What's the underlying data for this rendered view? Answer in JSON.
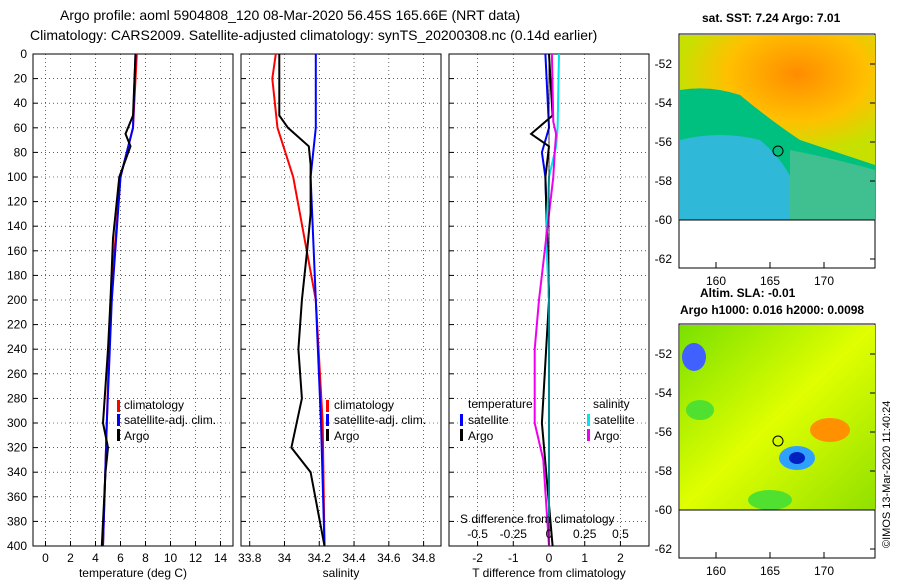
{
  "title_line1": "Argo profile: aoml 5904808_120 08-Mar-2020 56.45S 165.66E (NRT data)",
  "title_line2": "Climatology: CARS2009. Satellite-adjusted climatology: synTS_20200308.nc (0.14d earlier)",
  "colors": {
    "climatology": "#ff0000",
    "satellite": "#0000ff",
    "argo": "#000000",
    "sal_satellite": "#00e5ee",
    "sal_argo": "#ee00ee"
  },
  "chart_data": [
    {
      "type": "line",
      "id": "temperature",
      "xlabel": "temperature (deg C)",
      "ylabel": "",
      "xlim": [
        -1,
        15
      ],
      "ylim": [
        400,
        0
      ],
      "xticks": [
        "0",
        "2",
        "4",
        "6",
        "8",
        "10",
        "12",
        "14"
      ],
      "yticks": [
        "0",
        "20",
        "40",
        "60",
        "80",
        "100",
        "120",
        "140",
        "160",
        "180",
        "200",
        "220",
        "240",
        "260",
        "280",
        "300",
        "320",
        "340",
        "360",
        "380",
        "400"
      ],
      "legend": [
        "climatology",
        "satellite-adj. clim.",
        "Argo"
      ],
      "series": [
        {
          "name": "climatology",
          "depth": [
            0,
            60,
            100,
            200,
            300,
            400
          ],
          "values": [
            7.3,
            7.0,
            6.0,
            5.2,
            4.9,
            4.6
          ]
        },
        {
          "name": "satellite-adj. clim.",
          "depth": [
            0,
            60,
            100,
            200,
            300,
            400
          ],
          "values": [
            7.2,
            7.0,
            6.0,
            5.3,
            4.9,
            4.6
          ]
        },
        {
          "name": "Argo",
          "depth": [
            0,
            50,
            65,
            75,
            100,
            150,
            200,
            240,
            300,
            320,
            340,
            400
          ],
          "values": [
            7.2,
            7.0,
            6.4,
            6.8,
            5.9,
            5.4,
            5.2,
            5.0,
            4.6,
            5.0,
            4.8,
            4.5
          ]
        }
      ]
    },
    {
      "type": "line",
      "id": "salinity",
      "xlabel": "salinity",
      "xlim": [
        33.75,
        34.9
      ],
      "ylim": [
        400,
        0
      ],
      "xticks": [
        "33.8",
        "34",
        "34.2",
        "34.4",
        "34.6",
        "34.8"
      ],
      "legend": [
        "climatology",
        "satellite-adj. clim.",
        "Argo"
      ],
      "series": [
        {
          "name": "climatology",
          "depth": [
            0,
            20,
            60,
            100,
            200,
            300,
            400
          ],
          "values": [
            33.95,
            33.93,
            33.96,
            34.05,
            34.18,
            34.22,
            34.23
          ]
        },
        {
          "name": "satellite-adj. clim.",
          "depth": [
            0,
            60,
            100,
            200,
            300,
            400
          ],
          "values": [
            34.18,
            34.18,
            34.15,
            34.18,
            34.21,
            34.23
          ]
        },
        {
          "name": "Argo",
          "depth": [
            0,
            50,
            60,
            75,
            90,
            130,
            160,
            200,
            240,
            280,
            320,
            340,
            400
          ],
          "values": [
            33.97,
            33.97,
            34.02,
            34.14,
            34.15,
            34.15,
            34.13,
            34.1,
            34.08,
            34.1,
            34.04,
            34.15,
            34.23
          ]
        }
      ]
    },
    {
      "type": "line",
      "id": "differences",
      "xlabel": "T difference from climatology",
      "xlabel_top": "S difference from climatology",
      "xlim": [
        -2.8,
        2.8
      ],
      "ylim": [
        400,
        0
      ],
      "xticks": [
        "-2",
        "-1",
        "0",
        "1",
        "2"
      ],
      "xticks_top": [
        "-0.5",
        "-0.25",
        "0",
        "0.25",
        "0.5"
      ],
      "legend_temperature": {
        "title": "temperature",
        "items": [
          "satellite",
          "Argo"
        ]
      },
      "legend_salinity": {
        "title": "salinity",
        "items": [
          "satellite",
          "Argo"
        ]
      },
      "series": [
        {
          "name": "temperature satellite",
          "depth": [
            0,
            60,
            80,
            100,
            200,
            300,
            400
          ],
          "values": [
            -0.1,
            0,
            -0.2,
            -0.1,
            0,
            0,
            0
          ]
        },
        {
          "name": "temperature Argo",
          "depth": [
            0,
            50,
            65,
            75,
            100,
            200,
            300,
            400
          ],
          "values": [
            0,
            0.1,
            -0.5,
            0,
            -0.1,
            0,
            -0.2,
            0.1
          ]
        },
        {
          "name": "salinity satellite",
          "depth": [
            0,
            60,
            75,
            100,
            150,
            200,
            300,
            400
          ],
          "values": [
            0.07,
            0.06,
            0.05,
            0,
            -0.02,
            0,
            0,
            0
          ]
        },
        {
          "name": "salinity Argo",
          "depth": [
            0,
            55,
            65,
            80,
            100,
            130,
            200,
            240,
            300,
            330,
            400
          ],
          "values": [
            0.02,
            0.03,
            0.05,
            0.04,
            0.03,
            0,
            -0.07,
            -0.1,
            -0.1,
            -0.04,
            0
          ]
        }
      ]
    },
    {
      "type": "heatmap",
      "id": "sst_map",
      "title": "sat. SST: 7.24 Argo: 7.01",
      "xticks": [
        "160",
        "165",
        "170"
      ],
      "yticks": [
        "-52",
        "-54",
        "-56",
        "-58",
        "-60",
        "-62"
      ]
    },
    {
      "type": "heatmap",
      "id": "sla_map",
      "title1": "Altim. SLA: -0.01",
      "title2": "Argo h1000: 0.016 h2000: 0.0098",
      "xticks": [
        "160",
        "165",
        "170"
      ],
      "yticks": [
        "-52",
        "-54",
        "-56",
        "-58",
        "-60",
        "-62"
      ]
    }
  ],
  "credit": "©IMOS 13-Mar-2020 11:40:24"
}
